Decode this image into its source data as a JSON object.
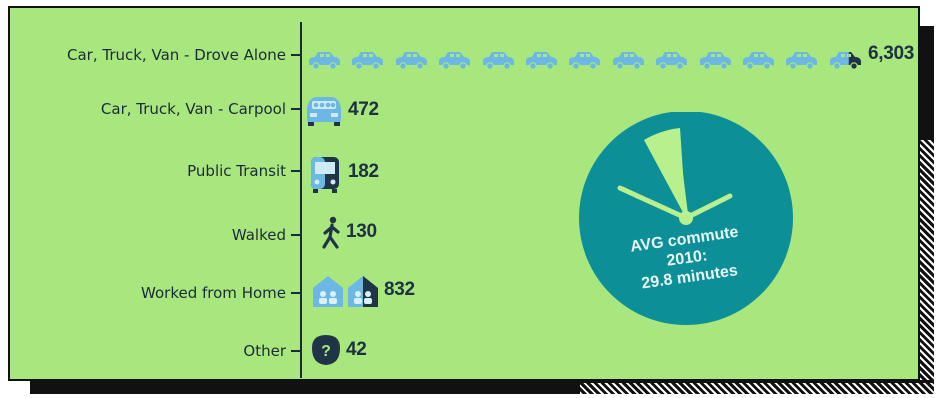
{
  "chart_data": {
    "type": "bar",
    "orientation": "horizontal",
    "style": "pictograph",
    "categories": [
      "Car, Truck, Van - Drove Alone",
      "Car, Truck, Van - Carpool",
      "Public Transit",
      "Walked",
      "Worked from Home",
      "Other"
    ],
    "values": [
      6303,
      472,
      182,
      130,
      832,
      42
    ],
    "value_labels": [
      "6,303",
      "472",
      "182",
      "130",
      "832",
      "42"
    ],
    "icons": [
      "car-icon",
      "carpool-icon",
      "bus-icon",
      "walking-person-icon",
      "house-icon",
      "question-icon"
    ],
    "units_per_icon": 500,
    "title": "",
    "xlabel": "",
    "ylabel": "",
    "grid": false,
    "annotation": {
      "lines": [
        "AVG commute",
        "2010:",
        "29.8 minutes"
      ],
      "value_minutes": 29.8
    }
  },
  "colors": {
    "background": "#a8e67e",
    "icon_fill": "#6cb7e4",
    "icon_dark": "#1f3446",
    "dial": "#0d8f98",
    "dial_wedge": "#b8f08e",
    "text": "#1d2b37"
  }
}
